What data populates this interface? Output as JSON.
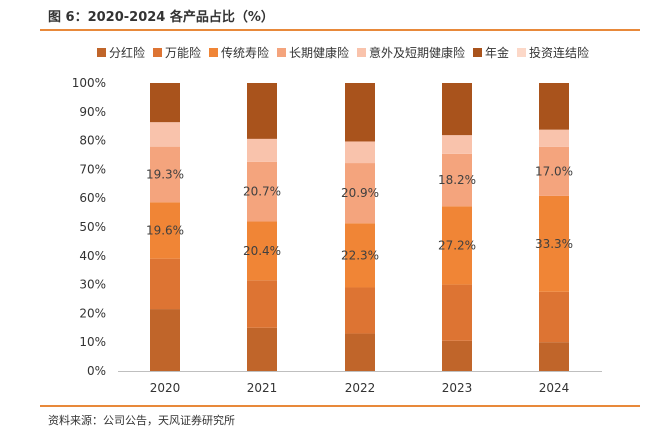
{
  "figure": {
    "title": "图 6：2020-2024 各产品占比（%）",
    "source": "资料来源：公司公告，天风证券研究所"
  },
  "chart_data": {
    "type": "bar",
    "stacked": true,
    "percent": true,
    "categories": [
      "2020",
      "2021",
      "2022",
      "2023",
      "2024"
    ],
    "ylim": [
      0,
      100
    ],
    "yticks": [
      "0%",
      "10%",
      "20%",
      "30%",
      "40%",
      "50%",
      "60%",
      "70%",
      "80%",
      "90%",
      "100%"
    ],
    "legend_position": "top",
    "series": [
      {
        "name": "分红险",
        "color": "#c0652a",
        "values": [
          21.5,
          15.0,
          13.0,
          10.5,
          10.0
        ]
      },
      {
        "name": "万能险",
        "color": "#dd7433",
        "values": [
          17.5,
          16.5,
          16.0,
          19.5,
          17.5
        ]
      },
      {
        "name": "传统寿险",
        "color": "#f08536",
        "values": [
          19.6,
          20.4,
          22.3,
          27.2,
          33.3
        ],
        "labels": [
          "19.6%",
          "20.4%",
          "22.3%",
          "27.2%",
          "33.3%"
        ]
      },
      {
        "name": "长期健康险",
        "color": "#f4a47d",
        "values": [
          19.3,
          20.7,
          20.9,
          18.2,
          17.0
        ],
        "labels": [
          "19.3%",
          "20.7%",
          "20.9%",
          "18.2%",
          "17.0%"
        ]
      },
      {
        "name": "意外及短期健康险",
        "color": "#f9c3ac",
        "values": [
          8.5,
          8.0,
          7.5,
          6.5,
          6.0
        ]
      },
      {
        "name": "年金",
        "color": "#a9531c",
        "values": [
          13.6,
          19.4,
          20.3,
          18.1,
          16.2
        ]
      },
      {
        "name": "投资连结险",
        "color": "#fcd8c8",
        "values": [
          0,
          0,
          0,
          0,
          0
        ]
      }
    ]
  }
}
